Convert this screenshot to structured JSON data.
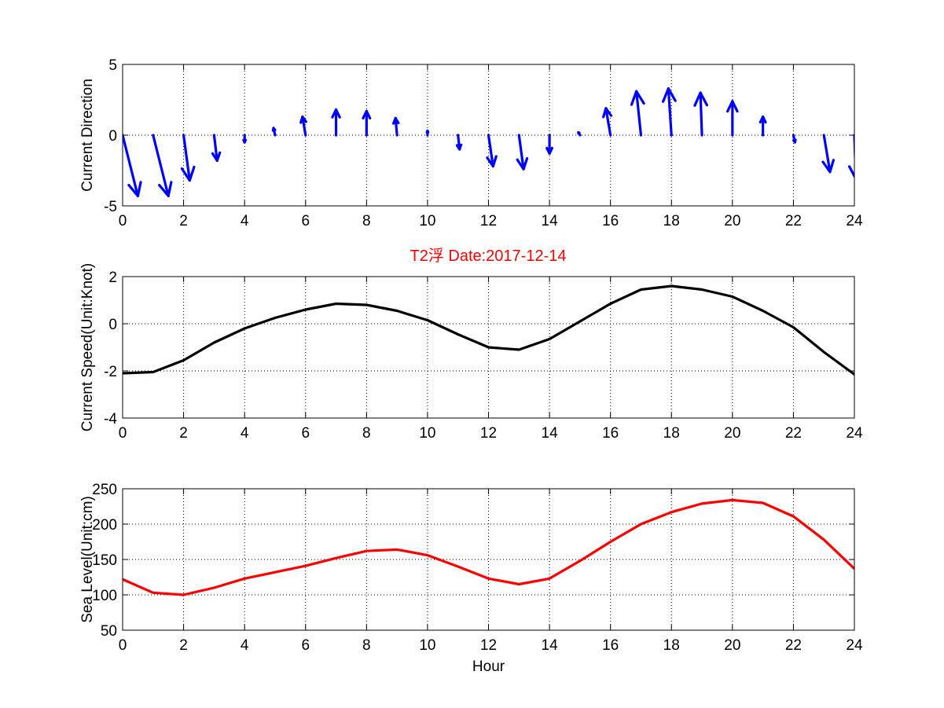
{
  "figure": {
    "title": "T2浮   Date:2017-12-14",
    "title_color": "#ff0000",
    "background": "#ffffff"
  },
  "chart_data": [
    {
      "type": "quiver",
      "ylabel": "Current Direction",
      "xlabel": "",
      "xlim": [
        0,
        24
      ],
      "ylim": [
        -5,
        5
      ],
      "xticks": [
        0,
        2,
        4,
        6,
        8,
        10,
        12,
        14,
        16,
        18,
        20,
        22,
        24
      ],
      "yticks": [
        -5,
        0,
        5
      ],
      "grid": true,
      "color": "#0000ff",
      "x": [
        0,
        1,
        2,
        3,
        4,
        5,
        6,
        7,
        8,
        9,
        10,
        11,
        12,
        13,
        14,
        15,
        16,
        17,
        18,
        19,
        20,
        21,
        22,
        23,
        24
      ],
      "u": [
        0.5,
        0.5,
        0.2,
        0.1,
        0.0,
        -0.05,
        -0.1,
        0.0,
        0.0,
        -0.05,
        0.0,
        0.05,
        0.15,
        0.15,
        0.0,
        -0.05,
        -0.15,
        -0.15,
        -0.1,
        -0.05,
        0.0,
        0.0,
        0.05,
        0.2,
        0.05
      ],
      "v": [
        -4.3,
        -4.3,
        -3.2,
        -1.8,
        -0.5,
        0.5,
        1.3,
        1.8,
        1.7,
        1.2,
        0.3,
        -1.0,
        -2.2,
        -2.4,
        -1.3,
        0.2,
        1.9,
        3.1,
        3.3,
        3.0,
        2.4,
        1.3,
        -0.5,
        -2.6,
        -3.1
      ]
    },
    {
      "type": "line",
      "ylabel": "Current Speed(Unit:Knot)",
      "xlabel": "",
      "xlim": [
        0,
        24
      ],
      "ylim": [
        -4,
        2
      ],
      "xticks": [
        0,
        2,
        4,
        6,
        8,
        10,
        12,
        14,
        16,
        18,
        20,
        22,
        24
      ],
      "yticks": [
        -4,
        -2,
        0,
        2
      ],
      "grid": true,
      "series": [
        {
          "color": "#000000",
          "x": [
            0,
            1,
            2,
            3,
            4,
            5,
            6,
            7,
            8,
            9,
            10,
            11,
            12,
            13,
            14,
            15,
            16,
            17,
            18,
            19,
            20,
            21,
            22,
            23,
            24
          ],
          "values": [
            -2.1,
            -2.05,
            -1.55,
            -0.8,
            -0.2,
            0.25,
            0.6,
            0.85,
            0.8,
            0.55,
            0.15,
            -0.45,
            -1.0,
            -1.1,
            -0.65,
            0.1,
            0.85,
            1.45,
            1.6,
            1.45,
            1.15,
            0.55,
            -0.15,
            -1.2,
            -2.15
          ]
        }
      ]
    },
    {
      "type": "line",
      "ylabel": "Sea Level(Unit:cm)",
      "xlabel": "Hour",
      "xlim": [
        0,
        24
      ],
      "ylim": [
        50,
        250
      ],
      "xticks": [
        0,
        2,
        4,
        6,
        8,
        10,
        12,
        14,
        16,
        18,
        20,
        22,
        24
      ],
      "yticks": [
        50,
        100,
        150,
        200,
        250
      ],
      "grid": true,
      "series": [
        {
          "color": "#ff0000",
          "x": [
            0,
            1,
            2,
            3,
            4,
            5,
            6,
            7,
            8,
            9,
            10,
            11,
            12,
            13,
            14,
            15,
            16,
            17,
            18,
            19,
            20,
            21,
            22,
            23,
            24
          ],
          "values": [
            122,
            103,
            100,
            110,
            123,
            132,
            141,
            152,
            162,
            164,
            156,
            140,
            123,
            115,
            123,
            148,
            175,
            200,
            217,
            229,
            234,
            230,
            211,
            178,
            137
          ]
        }
      ]
    }
  ]
}
